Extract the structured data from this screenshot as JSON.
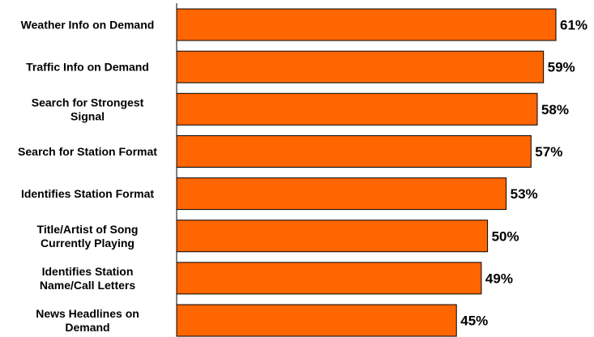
{
  "chart_data": {
    "type": "bar",
    "orientation": "horizontal",
    "categories": [
      [
        "Weather Info on Demand"
      ],
      [
        "Traffic Info on Demand"
      ],
      [
        "Search for Strongest",
        "Signal"
      ],
      [
        "Search for Station Format"
      ],
      [
        "Identifies Station Format"
      ],
      [
        "Title/Artist of Song",
        "Currently Playing"
      ],
      [
        "Identifies Station",
        "Name/Call Letters"
      ],
      [
        "News Headlines on",
        "Demand"
      ]
    ],
    "values": [
      61,
      59,
      58,
      57,
      53,
      50,
      49,
      45
    ],
    "value_labels": [
      "61%",
      "59%",
      "58%",
      "57%",
      "53%",
      "50%",
      "49%",
      "45%"
    ],
    "unit": "%",
    "xlim": [
      0,
      70
    ],
    "grid": false,
    "colors": {
      "bar_fill": "#ff6600",
      "bar_stroke": "#000000",
      "axis": "#000000",
      "text": "#000000"
    }
  }
}
